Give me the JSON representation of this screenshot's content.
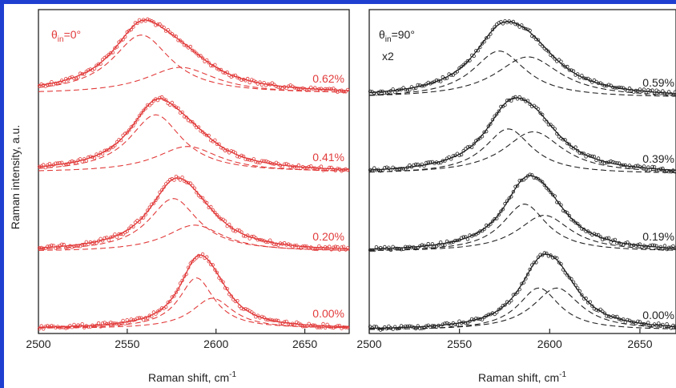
{
  "figure": {
    "ylabel": "Raman intensity, a.u."
  },
  "panels": [
    {
      "color": "#e23b3b",
      "theta_main": "θ",
      "theta_sub": "in",
      "theta_val": "=0°",
      "extra_label": "",
      "xlabel": "Raman shift, cm",
      "xlabel_sup": "-1",
      "xlim": [
        2500,
        2675
      ],
      "xticks": [
        "2500",
        "2550",
        "2600",
        "2650"
      ],
      "spectra": [
        {
          "strain": "0.62%",
          "peak1": 2558,
          "peak2": 2580,
          "w1": 20,
          "w2": 24,
          "a1": 1.0,
          "a2": 0.45
        },
        {
          "strain": "0.41%",
          "peak1": 2566,
          "peak2": 2584,
          "w1": 18,
          "w2": 22,
          "a1": 1.0,
          "a2": 0.45
        },
        {
          "strain": "0.20%",
          "peak1": 2576,
          "peak2": 2588,
          "w1": 17,
          "w2": 20,
          "a1": 1.0,
          "a2": 0.5
        },
        {
          "strain": "0.00%",
          "peak1": 2589,
          "peak2": 2598,
          "w1": 12,
          "w2": 14,
          "a1": 1.0,
          "a2": 0.6
        }
      ]
    },
    {
      "color": "#222222",
      "theta_main": "θ",
      "theta_sub": "in",
      "theta_val": "=90°",
      "extra_label": "x2",
      "xlabel": "Raman shift, cm",
      "xlabel_sup": "-1",
      "xlim": [
        2500,
        2670
      ],
      "xticks": [
        "2500",
        "2550",
        "2600",
        "2650"
      ],
      "spectra": [
        {
          "strain": "0.59%",
          "peak1": 2572,
          "peak2": 2588,
          "w1": 18,
          "w2": 22,
          "a1": 0.8,
          "a2": 0.7
        },
        {
          "strain": "0.39%",
          "peak1": 2577,
          "peak2": 2591,
          "w1": 16,
          "w2": 20,
          "a1": 0.8,
          "a2": 0.75
        },
        {
          "strain": "0.19%",
          "peak1": 2586,
          "peak2": 2597,
          "w1": 15,
          "w2": 18,
          "a1": 0.85,
          "a2": 0.65
        },
        {
          "strain": "0.00%",
          "peak1": 2594,
          "peak2": 2604,
          "w1": 14,
          "w2": 16,
          "a1": 0.7,
          "a2": 0.7
        }
      ]
    }
  ],
  "chart_data": [
    {
      "type": "line",
      "title": "",
      "xlabel": "Raman shift, cm-1",
      "ylabel": "Raman intensity, a.u.",
      "xlim": [
        2500,
        2675
      ],
      "annotation": "θin=0°",
      "series": [
        {
          "name": "0.62%",
          "peak_positions": [
            2558,
            2580
          ]
        },
        {
          "name": "0.41%",
          "peak_positions": [
            2566,
            2584
          ]
        },
        {
          "name": "0.20%",
          "peak_positions": [
            2576,
            2588
          ]
        },
        {
          "name": "0.00%",
          "peak_positions": [
            2589,
            2598
          ]
        }
      ]
    },
    {
      "type": "line",
      "title": "",
      "xlabel": "Raman shift, cm-1",
      "ylabel": "",
      "xlim": [
        2500,
        2670
      ],
      "annotation": "θin=90° x2",
      "series": [
        {
          "name": "0.59%",
          "peak_positions": [
            2572,
            2588
          ]
        },
        {
          "name": "0.39%",
          "peak_positions": [
            2577,
            2591
          ]
        },
        {
          "name": "0.19%",
          "peak_positions": [
            2586,
            2597
          ]
        },
        {
          "name": "0.00%",
          "peak_positions": [
            2594,
            2604
          ]
        }
      ]
    }
  ]
}
